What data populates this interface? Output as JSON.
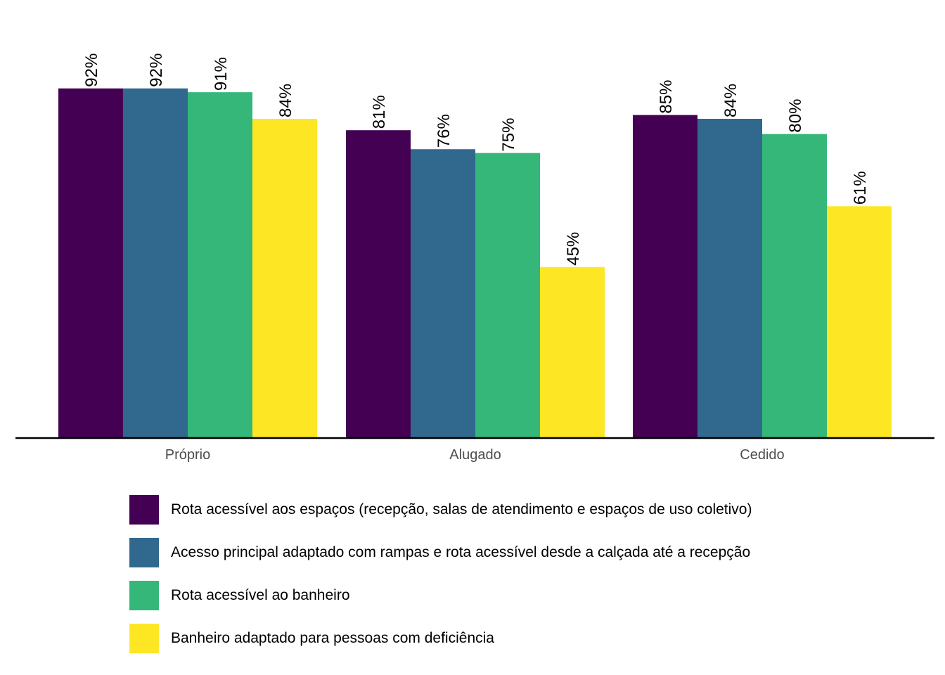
{
  "chart_data": {
    "type": "bar",
    "categories": [
      "Próprio",
      "Alugado",
      "Cedido"
    ],
    "series": [
      {
        "name": "Rota acessível aos espaços (recepção, salas de atendimento e espaços de uso coletivo)",
        "color": "#440154",
        "values": [
          92,
          81,
          85
        ],
        "labels": [
          "92%",
          "81%",
          "85%"
        ]
      },
      {
        "name": "Acesso principal adaptado com rampas e rota acessível desde a calçada até a recepção",
        "color": "#31688E",
        "values": [
          92,
          76,
          84
        ],
        "labels": [
          "92%",
          "76%",
          "84%"
        ]
      },
      {
        "name": "Rota acessível ao banheiro",
        "color": "#35B779",
        "values": [
          91,
          75,
          80
        ],
        "labels": [
          "91%",
          "75%",
          "80%"
        ]
      },
      {
        "name": "Banheiro adaptado para pessoas com deficiência",
        "color": "#FDE725",
        "values": [
          84,
          45,
          61
        ],
        "labels": [
          "84%",
          "45%",
          "61%"
        ]
      }
    ],
    "ylim": [
      0,
      100
    ],
    "grid": false,
    "legend_position": "bottom",
    "bar_label_orientation": "vertical",
    "xlabel": "",
    "ylabel": ""
  }
}
